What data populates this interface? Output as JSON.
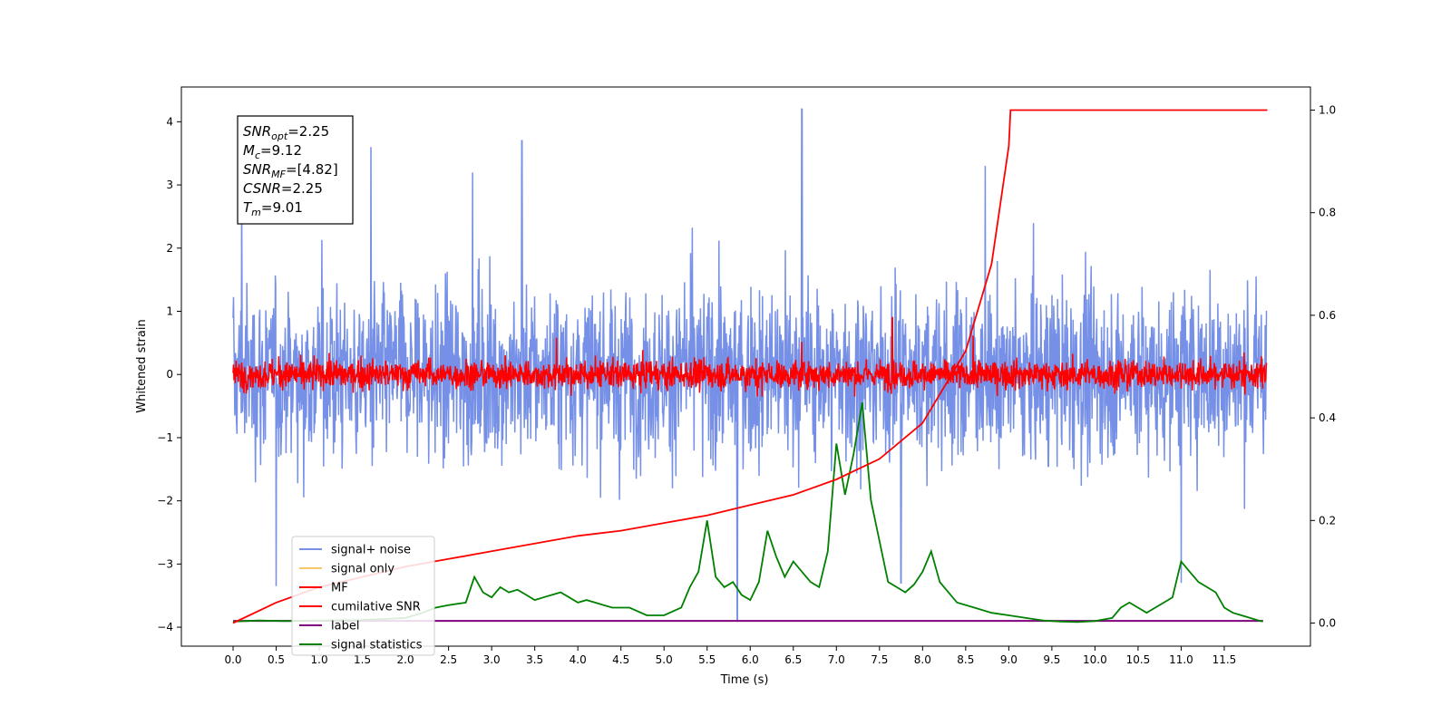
{
  "chart_data": {
    "type": "line",
    "xlabel": "Time (s)",
    "ylabel": "Whitened strain",
    "xlim": [
      -0.6,
      12.5
    ],
    "ylim_left": [
      -4.3,
      4.55
    ],
    "ylim_right": [
      -0.045,
      1.045
    ],
    "x_ticks": [
      "0.0",
      "0.5",
      "1.0",
      "1.5",
      "2.0",
      "2.5",
      "3.0",
      "3.5",
      "4.0",
      "4.5",
      "5.0",
      "5.5",
      "6.0",
      "6.5",
      "7.0",
      "7.5",
      "8.0",
      "8.5",
      "9.0",
      "9.5",
      "10.0",
      "10.5",
      "11.0",
      "11.5"
    ],
    "y_ticks_left": [
      "4",
      "3",
      "2",
      "1",
      "0",
      "−1",
      "−2",
      "−3",
      "−4"
    ],
    "y_ticks_right": [
      "0.0",
      "0.2",
      "0.4",
      "0.6",
      "0.8",
      "1.0"
    ],
    "annotation": [
      {
        "base": "SNR",
        "sub": "opt",
        "value": "=2.25"
      },
      {
        "base": "M",
        "sub": "c",
        "value": "=9.12"
      },
      {
        "base": "SNR",
        "sub": "MF",
        "value": "=[4.82]"
      },
      {
        "base": "CSNR",
        "sub": "",
        "value": "=2.25"
      },
      {
        "base": "T",
        "sub": "m",
        "value": "=9.01"
      }
    ],
    "series": [
      {
        "name": "signal+ noise",
        "color": "#7590e6",
        "axis": "left",
        "description": "whitened noise, approx ±1.3 typical, peaks to 4.2 near t=6.6, troughs to -3.9 near t=5.8",
        "peaks": [
          [
            0.1,
            3.0
          ],
          [
            1.6,
            3.6
          ],
          [
            3.35,
            3.7
          ],
          [
            6.6,
            4.2
          ],
          [
            5.85,
            -3.9
          ],
          [
            0.5,
            -3.35
          ],
          [
            7.75,
            -3.3
          ],
          [
            11.0,
            -3.3
          ]
        ]
      },
      {
        "name": "signal only",
        "color": "#f5c96a",
        "axis": "left",
        "values": []
      },
      {
        "name": "MF",
        "color": "#ff0000",
        "axis": "left",
        "description": "matched filter output, approx ±0.4 band around 0, spikes to 0.9 near t=7.65"
      },
      {
        "name": "cumilative SNR",
        "color": "#ff0000",
        "axis": "right",
        "x": [
          0.0,
          0.5,
          1.0,
          1.5,
          2.0,
          2.5,
          3.0,
          3.5,
          4.0,
          4.5,
          5.0,
          5.5,
          6.0,
          6.5,
          7.0,
          7.5,
          8.0,
          8.5,
          8.8,
          9.0,
          9.02,
          9.5,
          10.0,
          10.5,
          11.0,
          11.5,
          12.0
        ],
        "y": [
          0.0,
          0.04,
          0.07,
          0.09,
          0.11,
          0.125,
          0.14,
          0.155,
          0.17,
          0.18,
          0.195,
          0.21,
          0.23,
          0.25,
          0.28,
          0.32,
          0.39,
          0.53,
          0.7,
          0.93,
          1.0,
          1.0,
          1.0,
          1.0,
          1.0,
          1.0,
          1.0
        ]
      },
      {
        "name": "label",
        "color": "#800080",
        "axis": "left",
        "x": [
          0.0,
          11.95
        ],
        "y": [
          -3.9,
          -3.9
        ]
      },
      {
        "name": "signal statistics",
        "color": "#008000",
        "axis": "right",
        "x": [
          0.0,
          0.3,
          0.6,
          1.0,
          1.5,
          2.0,
          2.2,
          2.35,
          2.5,
          2.7,
          2.8,
          2.9,
          3.0,
          3.1,
          3.2,
          3.3,
          3.4,
          3.5,
          3.6,
          3.7,
          3.8,
          3.9,
          4.0,
          4.1,
          4.2,
          4.3,
          4.4,
          4.5,
          4.6,
          4.8,
          5.0,
          5.2,
          5.3,
          5.4,
          5.5,
          5.6,
          5.7,
          5.8,
          5.9,
          6.0,
          6.1,
          6.2,
          6.3,
          6.4,
          6.5,
          6.6,
          6.7,
          6.8,
          6.9,
          7.0,
          7.1,
          7.2,
          7.3,
          7.4,
          7.5,
          7.6,
          7.7,
          7.8,
          7.9,
          8.0,
          8.1,
          8.2,
          8.3,
          8.4,
          8.6,
          8.8,
          9.0,
          9.2,
          9.4,
          9.6,
          9.8,
          10.0,
          10.2,
          10.3,
          10.4,
          10.5,
          10.6,
          10.7,
          10.8,
          10.9,
          11.0,
          11.1,
          11.2,
          11.3,
          11.4,
          11.5,
          11.6,
          11.7,
          11.8,
          11.9,
          11.95
        ],
        "y": [
          0.003,
          0.005,
          0.004,
          0.005,
          0.006,
          0.01,
          0.02,
          0.03,
          0.035,
          0.04,
          0.09,
          0.06,
          0.05,
          0.07,
          0.06,
          0.065,
          0.055,
          0.045,
          0.05,
          0.055,
          0.06,
          0.05,
          0.04,
          0.045,
          0.04,
          0.035,
          0.03,
          0.03,
          0.03,
          0.015,
          0.015,
          0.03,
          0.07,
          0.1,
          0.2,
          0.09,
          0.07,
          0.08,
          0.055,
          0.045,
          0.08,
          0.18,
          0.13,
          0.09,
          0.12,
          0.1,
          0.08,
          0.07,
          0.14,
          0.35,
          0.25,
          0.33,
          0.43,
          0.24,
          0.16,
          0.08,
          0.07,
          0.06,
          0.075,
          0.1,
          0.14,
          0.08,
          0.06,
          0.04,
          0.03,
          0.02,
          0.015,
          0.01,
          0.005,
          0.003,
          0.002,
          0.004,
          0.01,
          0.03,
          0.04,
          0.03,
          0.02,
          0.03,
          0.04,
          0.05,
          0.12,
          0.1,
          0.08,
          0.07,
          0.06,
          0.03,
          0.02,
          0.015,
          0.01,
          0.005,
          0.003
        ]
      }
    ],
    "legend": {
      "placement": "lower-left",
      "entries": [
        {
          "label": "signal+ noise",
          "color": "#7590e6"
        },
        {
          "label": "signal only",
          "color": "#f5c96a"
        },
        {
          "label": "MF",
          "color": "#ff0000"
        },
        {
          "label": "cumilative SNR",
          "color": "#ff0000"
        },
        {
          "label": "label",
          "color": "#800080"
        },
        {
          "label": "signal statistics",
          "color": "#008000"
        }
      ]
    },
    "grid": false
  }
}
